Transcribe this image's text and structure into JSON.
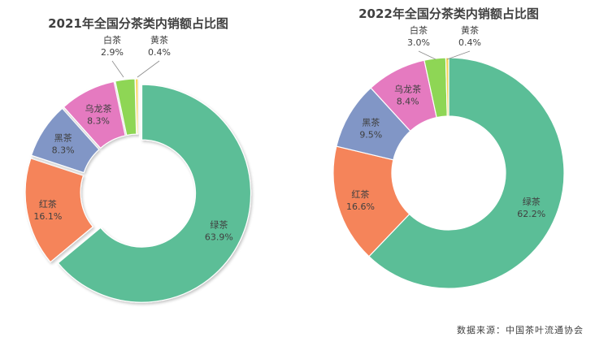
{
  "source_note": "数据来源：中国茶叶流通协会",
  "chart_data": [
    {
      "type": "pie",
      "title": "2021年全国分茶类内销额占比图",
      "slices": [
        {
          "name": "绿茶",
          "value": 63.9,
          "label": "63.9%",
          "color": "#5BBE97",
          "exploded": true
        },
        {
          "name": "红茶",
          "value": 16.1,
          "label": "16.1%",
          "color": "#F5845A",
          "exploded": true
        },
        {
          "name": "黑茶",
          "value": 8.3,
          "label": "8.3%",
          "color": "#8196C6",
          "exploded": true
        },
        {
          "name": "乌龙茶",
          "value": 8.3,
          "label": "8.3%",
          "color": "#E57AC0",
          "exploded": true
        },
        {
          "name": "白茶",
          "value": 2.9,
          "label": "2.9%",
          "color": "#8ED655",
          "exploded": true
        },
        {
          "name": "黄茶",
          "value": 0.4,
          "label": "0.4%",
          "color": "#F6D24F",
          "exploded": true
        }
      ]
    },
    {
      "type": "pie",
      "title": "2022年全国分茶类内销额占比图",
      "slices": [
        {
          "name": "绿茶",
          "value": 62.2,
          "label": "62.2%",
          "color": "#5BBE97",
          "exploded": false
        },
        {
          "name": "红茶",
          "value": 16.6,
          "label": "16.6%",
          "color": "#F5845A",
          "exploded": false
        },
        {
          "name": "黑茶",
          "value": 9.5,
          "label": "9.5%",
          "color": "#8196C6",
          "exploded": false
        },
        {
          "name": "乌龙茶",
          "value": 8.4,
          "label": "8.4%",
          "color": "#E57AC0",
          "exploded": false
        },
        {
          "name": "白茶",
          "value": 3.0,
          "label": "3.0%",
          "color": "#8ED655",
          "exploded": false
        },
        {
          "name": "黄茶",
          "value": 0.4,
          "label": "0.4%",
          "color": "#F6D24F",
          "exploded": false
        }
      ]
    }
  ]
}
